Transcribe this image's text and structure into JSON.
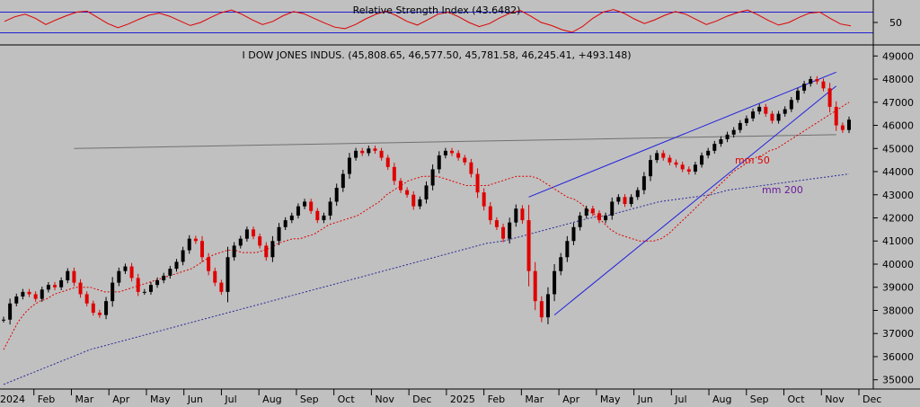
{
  "chart_data": [
    {
      "type": "line",
      "title": "Relative Strength Index (43.6482)",
      "y_tick_labels": [
        "50"
      ],
      "reference_levels": [
        30,
        70
      ],
      "series": [
        {
          "values": [
            52,
            61,
            66,
            58,
            46,
            55,
            63,
            70,
            72,
            60,
            48,
            40,
            47,
            56,
            64,
            68,
            62,
            53,
            44,
            50,
            60,
            69,
            74,
            66,
            55,
            46,
            52,
            63,
            71,
            67,
            58,
            49,
            41,
            38,
            46,
            57,
            66,
            72,
            63,
            52,
            45,
            55,
            66,
            70,
            61,
            50,
            42,
            48,
            59,
            68,
            73,
            62,
            50,
            44,
            36,
            31,
            42,
            58,
            70,
            75,
            68,
            57,
            48,
            55,
            64,
            71,
            66,
            56,
            46,
            53,
            62,
            69,
            74,
            65,
            54,
            45,
            50,
            60,
            68,
            70,
            58,
            47,
            43.6
          ]
        }
      ]
    },
    {
      "type": "line",
      "title": "I DOW JONES INDUS. (45,808.65, 46,577.50, 45,781.58, 46,245.41, +493.148)",
      "x_tick_labels": [
        "2024",
        "Feb",
        "Mar",
        "Apr",
        "May",
        "Jun",
        "Jul",
        "Aug",
        "Sep",
        "Oct",
        "Nov",
        "Dec",
        "2025",
        "Feb",
        "Mar",
        "Apr",
        "May",
        "Jun",
        "Jul",
        "Aug",
        "Sep",
        "Oct",
        "Nov",
        "Dec"
      ],
      "y_tick_labels": [
        "35000",
        "36000",
        "37000",
        "38000",
        "39000",
        "40000",
        "41000",
        "42000",
        "43000",
        "44000",
        "45000",
        "46000",
        "47000",
        "48000",
        "49000"
      ],
      "ylim": [
        34600,
        49400
      ],
      "annotations": [
        "mm 50",
        "mm 200"
      ],
      "series": [
        {
          "name": "price",
          "values": [
            37600,
            38300,
            38600,
            38800,
            38700,
            38500,
            38900,
            39100,
            39000,
            39300,
            39700,
            39200,
            38700,
            38300,
            37900,
            37800,
            38400,
            39200,
            39700,
            39900,
            39400,
            38800,
            38800,
            39100,
            39300,
            39500,
            39800,
            40100,
            40600,
            41100,
            41000,
            40300,
            39700,
            39200,
            38800,
            40300,
            40800,
            41100,
            41500,
            41200,
            40800,
            40300,
            41000,
            41600,
            41900,
            42100,
            42500,
            42700,
            42300,
            41900,
            42100,
            42700,
            43300,
            43900,
            44600,
            44900,
            44800,
            45000,
            44900,
            44600,
            44200,
            43600,
            43200,
            43000,
            42500,
            42800,
            43400,
            44100,
            44700,
            44900,
            44800,
            44600,
            44400,
            43900,
            43100,
            42500,
            41900,
            41600,
            41100,
            41800,
            42400,
            41900,
            39700,
            38400,
            37700,
            38700,
            39700,
            40300,
            41000,
            41600,
            42100,
            42400,
            42200,
            41900,
            42100,
            42700,
            42900,
            42600,
            42900,
            43200,
            43800,
            44500,
            44800,
            44600,
            44400,
            44300,
            44100,
            44000,
            44300,
            44700,
            44900,
            45200,
            45400,
            45600,
            45800,
            46100,
            46300,
            46600,
            46800,
            46500,
            46200,
            46500,
            46700,
            47100,
            47500,
            47800,
            48000,
            47900,
            47600,
            46800,
            46000,
            45800,
            46245.41
          ]
        },
        {
          "name": "mm 50",
          "values": [
            36300,
            36900,
            37500,
            37900,
            38200,
            38400,
            38500,
            38700,
            38800,
            38900,
            39000,
            39000,
            39000,
            38900,
            38800,
            38800,
            38800,
            38900,
            39000,
            39100,
            39200,
            39300,
            39400,
            39500,
            39600,
            39700,
            39800,
            40000,
            40200,
            40400,
            40500,
            40600,
            40600,
            40500,
            40500,
            40500,
            40600,
            40700,
            40900,
            41000,
            41100,
            41100,
            41200,
            41300,
            41500,
            41700,
            41800,
            41900,
            42000,
            42100,
            42300,
            42500,
            42700,
            43000,
            43200,
            43400,
            43600,
            43700,
            43800,
            43800,
            43800,
            43700,
            43600,
            43500,
            43400,
            43400,
            43400,
            43400,
            43500,
            43600,
            43700,
            43800,
            43800,
            43800,
            43700,
            43500,
            43300,
            43100,
            42900,
            42800,
            42600,
            42300,
            42100,
            41800,
            41500,
            41300,
            41200,
            41100,
            41000,
            41000,
            41000,
            41100,
            41300,
            41600,
            41900,
            42200,
            42500,
            42800,
            43100,
            43400,
            43700,
            44000,
            44200,
            44400,
            44600,
            44700,
            44900,
            45000,
            45200,
            45400,
            45600,
            45800,
            46000,
            46200,
            46400,
            46600,
            46800,
            47000
          ]
        },
        {
          "name": "mm 200",
          "values": [
            34800,
            35100,
            35400,
            35700,
            36000,
            36300,
            36500,
            36700,
            36900,
            37100,
            37300,
            37500,
            37700,
            37900,
            38100,
            38300,
            38500,
            38700,
            38900,
            39100,
            39300,
            39500,
            39700,
            39900,
            40100,
            40300,
            40500,
            40700,
            40900,
            41000,
            41200,
            41400,
            41600,
            41800,
            42000,
            42100,
            42300,
            42500,
            42700,
            42800,
            42900,
            43000,
            43200,
            43300,
            43400,
            43500,
            43600,
            43700,
            43800,
            43900
          ]
        }
      ],
      "trendlines": [
        {
          "from": [
            11,
            45000
          ],
          "to": [
            130,
            45600
          ]
        },
        {
          "from": [
            82,
            42900
          ],
          "to": [
            130,
            48300
          ]
        },
        {
          "from": [
            86,
            37800
          ],
          "to": [
            130,
            47700
          ]
        }
      ]
    }
  ]
}
